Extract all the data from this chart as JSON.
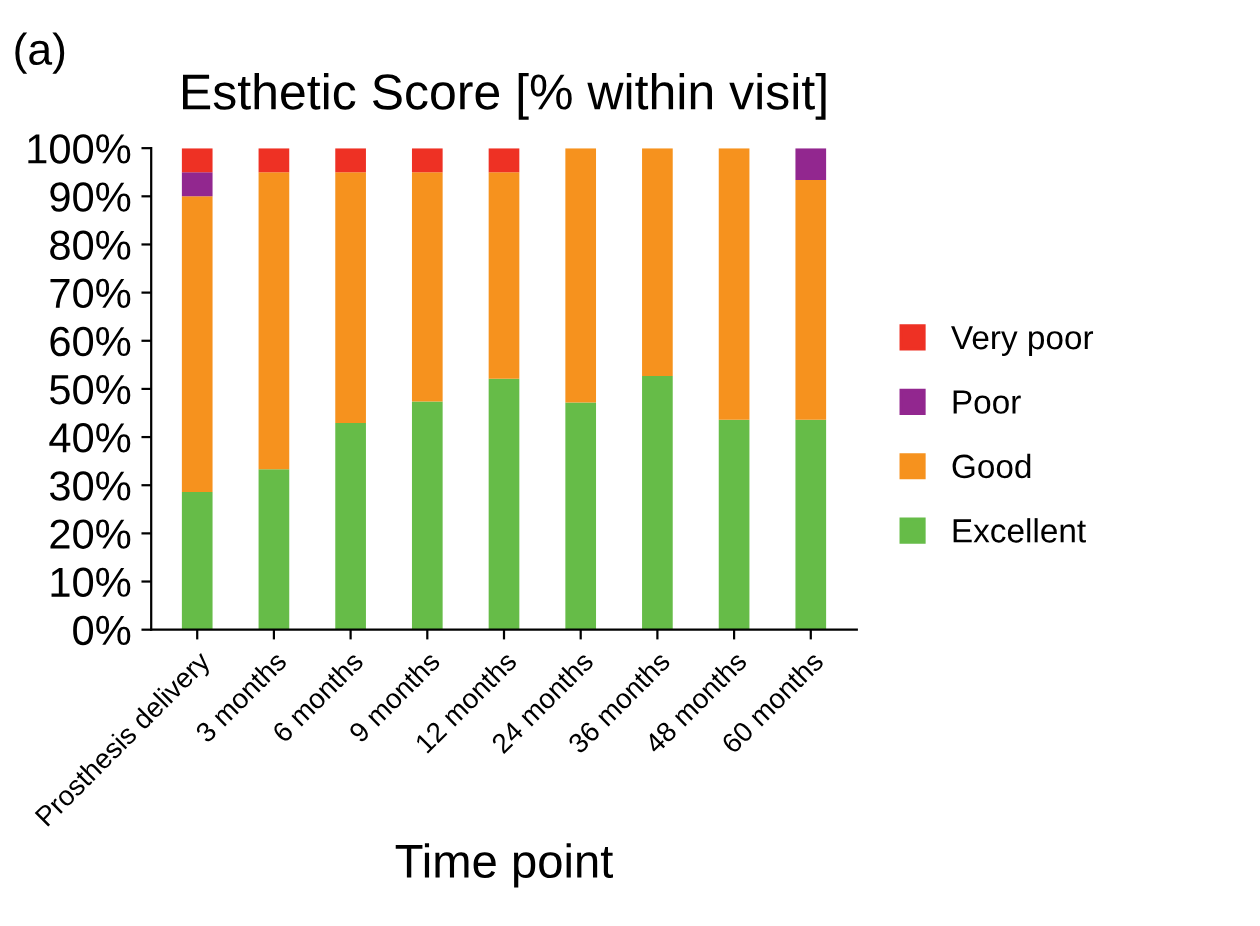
{
  "chart_data": {
    "type": "bar",
    "stacked": true,
    "title": "Esthetic Score [% within visit]",
    "xlabel": "Time point",
    "annotations": [
      "(a)"
    ],
    "categories": [
      "Prosthesis delivery",
      "3 months",
      "6 months",
      "9 months",
      "12 months",
      "24 months",
      "36 months",
      "48 months",
      "60 months"
    ],
    "series": [
      {
        "name": "Excellent",
        "color": "#66bc48",
        "values": [
          28.6,
          33.3,
          42.9,
          47.4,
          52.1,
          47.2,
          52.7,
          43.6,
          43.6
        ]
      },
      {
        "name": "Good",
        "color": "#f6921e",
        "values": [
          61.4,
          61.7,
          52.1,
          47.6,
          42.9,
          52.8,
          47.3,
          56.4,
          49.8
        ]
      },
      {
        "name": "Poor",
        "color": "#92278f",
        "values": [
          5,
          0,
          0,
          0,
          0,
          0,
          0,
          0,
          6.6
        ]
      },
      {
        "name": "Very poor",
        "color": "#ee3124",
        "values": [
          5,
          5,
          5,
          5,
          5,
          0,
          0,
          0,
          0
        ]
      }
    ],
    "ylim": [
      0,
      100
    ],
    "yticks": [
      {
        "value": 0,
        "label": "0%"
      },
      {
        "value": 10,
        "label": "10%"
      },
      {
        "value": 20,
        "label": "20%"
      },
      {
        "value": 30,
        "label": "30%"
      },
      {
        "value": 40,
        "label": "40%"
      },
      {
        "value": 50,
        "label": "50%"
      },
      {
        "value": 60,
        "label": "60%"
      },
      {
        "value": 70,
        "label": "70%"
      },
      {
        "value": 80,
        "label": "80%"
      },
      {
        "value": 90,
        "label": "90%"
      },
      {
        "value": 100,
        "label": "100%"
      }
    ],
    "grid": false,
    "legend": "right"
  }
}
